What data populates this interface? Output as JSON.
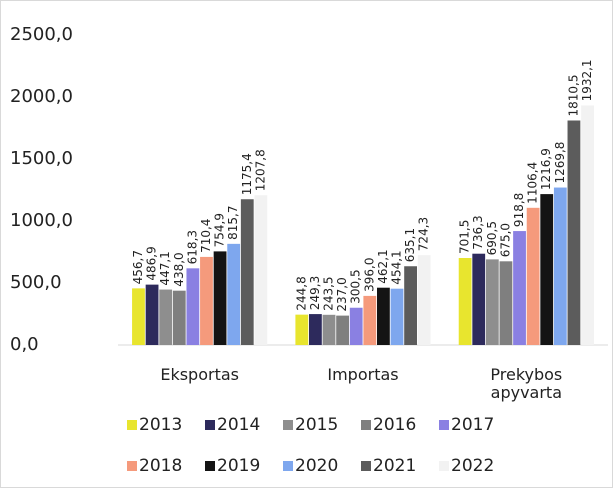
{
  "chart_data": {
    "type": "bar",
    "categories": [
      "Eksportas",
      "Importas",
      "Prekybos apyvarta"
    ],
    "ylim": [
      0,
      2500
    ],
    "yticks": [
      {
        "value": 0,
        "label": "0,0"
      },
      {
        "value": 500,
        "label": "500,0"
      },
      {
        "value": 1000,
        "label": "1000,0"
      },
      {
        "value": 1500,
        "label": "1500,0"
      },
      {
        "value": 2000,
        "label": "2000,0"
      },
      {
        "value": 2500,
        "label": "2500,0"
      }
    ],
    "legend": "bottom",
    "series": [
      {
        "name": "2013",
        "color": "#e8e52e",
        "values": [
          456.7,
          244.8,
          701.5
        ],
        "value_labels": [
          "456,7",
          "244,8",
          "701,5"
        ]
      },
      {
        "name": "2014",
        "color": "#2d2a5c",
        "values": [
          486.9,
          249.3,
          736.3
        ],
        "value_labels": [
          "486,9",
          "249,3",
          "736,3"
        ]
      },
      {
        "name": "2015",
        "color": "#8e8e8e",
        "values": [
          447.1,
          243.5,
          690.5
        ],
        "value_labels": [
          "447,1",
          "243,5",
          "690,5"
        ]
      },
      {
        "name": "2016",
        "color": "#7f7f7f",
        "values": [
          438.0,
          237.0,
          675.0
        ],
        "value_labels": [
          "438,0",
          "237,0",
          "675,0"
        ]
      },
      {
        "name": "2017",
        "color": "#8a80e2",
        "values": [
          618.3,
          300.5,
          918.8
        ],
        "value_labels": [
          "618,3",
          "300,5",
          "918,8"
        ]
      },
      {
        "name": "2018",
        "color": "#f59a7c",
        "values": [
          710.4,
          396.0,
          1106.4
        ],
        "value_labels": [
          "710,4",
          "396,0",
          "1106,4"
        ]
      },
      {
        "name": "2019",
        "color": "#141414",
        "values": [
          754.9,
          462.1,
          1216.9
        ],
        "value_labels": [
          "754,9",
          "462,1",
          "1216,9"
        ]
      },
      {
        "name": "2020",
        "color": "#7ea7ee",
        "values": [
          815.7,
          454.1,
          1269.8
        ],
        "value_labels": [
          "815,7",
          "454,1",
          "1269,8"
        ]
      },
      {
        "name": "2021",
        "color": "#5c5c5c",
        "values": [
          1175.4,
          635.1,
          1810.5
        ],
        "value_labels": [
          "1175,4",
          "635,1",
          "1810,5"
        ]
      },
      {
        "name": "2022",
        "color": "#f2f2f2",
        "values": [
          1207.8,
          724.3,
          1932.1
        ],
        "value_labels": [
          "1207,8",
          "724,3",
          "1932,1"
        ]
      }
    ]
  }
}
